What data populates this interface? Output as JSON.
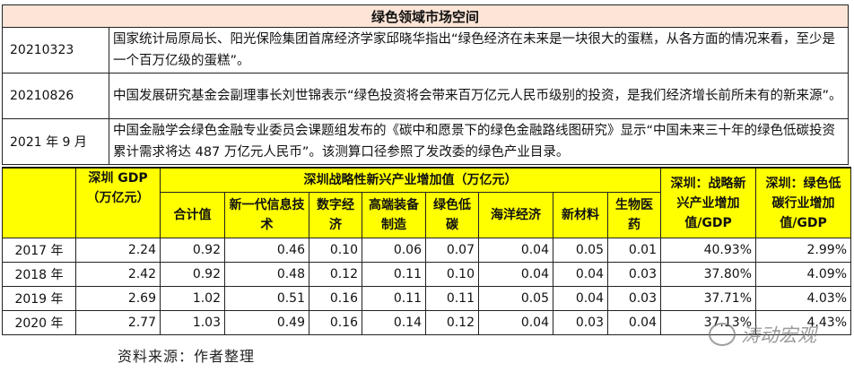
{
  "title": "绿色领域市场空间",
  "quotes": [
    {
      "date": "20210323",
      "text": "国家统计局原局长、阳光保险集团首席经济学家邱晓华指出“绿色经济在未来是一块很大的蛋糕，从各方面的情况来看，至少是一个百万亿级的蛋糕”。"
    },
    {
      "date": "20210826",
      "text": "中国发展研究基金会副理事长刘世锦表示“绿色投资将会带来百万亿元人民币级别的投资，是我们经济增长前所未有的新来源”。"
    },
    {
      "date": "2021 年 9 月",
      "text": "中国金融学会绿色金融专业委员会课题组发布的《碳中和愿景下的绿色金融路线图研究》显示“中国未来三十年的绿色低碳投资累计需求将达 487 万亿元人民币”。该测算口径参照了发改委的绿色产业目录。"
    }
  ],
  "table": {
    "gdp_header": "深圳 GDP（万亿元）",
    "group_header": "深圳战略性新兴产业增加值（万亿元）",
    "sub_headers": [
      "合计值",
      "新一代信息技术",
      "数字经济",
      "高端装备制造",
      "绿色低碳",
      "海洋经济",
      "新材料",
      "生物医药"
    ],
    "ratio1_header": "深圳：战略新兴产业增加值/GDP",
    "ratio2_header": "深圳：绿色低碳行业增加值/GDP",
    "rows": [
      [
        "2017 年",
        "2.24",
        "0.92",
        "0.46",
        "0.10",
        "0.06",
        "0.07",
        "0.04",
        "0.05",
        "0.01",
        "40.93%",
        "2.99%"
      ],
      [
        "2018 年",
        "2.42",
        "0.92",
        "0.48",
        "0.12",
        "0.11",
        "0.10",
        "0.04",
        "0.04",
        "0.03",
        "37.80%",
        "4.09%"
      ],
      [
        "2019 年",
        "2.69",
        "1.02",
        "0.51",
        "0.16",
        "0.11",
        "0.11",
        "0.05",
        "0.04",
        "0.03",
        "37.71%",
        "4.03%"
      ],
      [
        "2020 年",
        "2.77",
        "1.03",
        "0.49",
        "0.16",
        "0.14",
        "0.12",
        "0.04",
        "0.03",
        "0.04",
        "37.13%",
        "4.43%"
      ]
    ]
  },
  "source": "资料来源：作者整理",
  "watermark": "涛动宏观",
  "colors": {
    "title_bg": "#fce4d6",
    "header_bg": "#ffff00"
  }
}
